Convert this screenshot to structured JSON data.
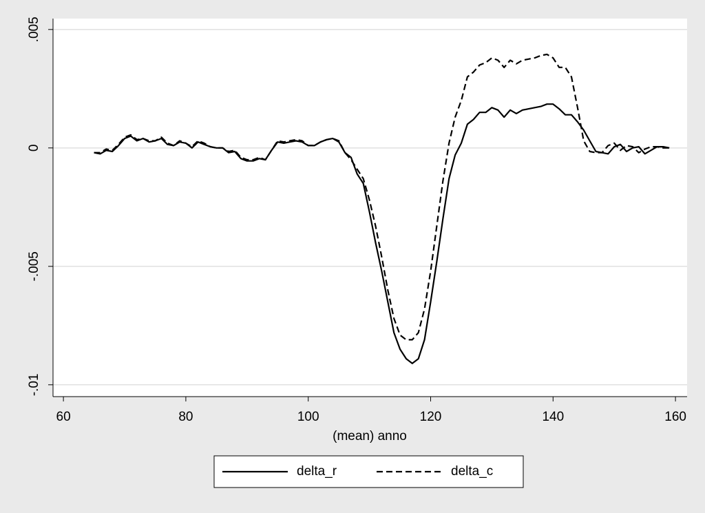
{
  "chart_data": {
    "type": "line",
    "xlabel": "(mean) anno",
    "x": [
      65,
      66,
      67,
      68,
      69,
      70,
      71,
      72,
      73,
      74,
      75,
      76,
      77,
      78,
      79,
      80,
      81,
      82,
      83,
      84,
      85,
      86,
      87,
      88,
      89,
      90,
      91,
      92,
      93,
      94,
      95,
      96,
      97,
      98,
      99,
      100,
      101,
      102,
      103,
      104,
      105,
      106,
      107,
      108,
      109,
      110,
      111,
      112,
      113,
      114,
      115,
      116,
      117,
      118,
      119,
      120,
      121,
      122,
      123,
      124,
      125,
      126,
      127,
      128,
      129,
      130,
      131,
      132,
      133,
      134,
      135,
      136,
      137,
      138,
      139,
      140,
      141,
      142,
      143,
      144,
      145,
      146,
      147,
      148,
      149,
      150,
      151,
      152,
      153,
      154,
      155,
      156,
      157,
      158,
      159
    ],
    "series": [
      {
        "name": "delta_r",
        "color": "#000000",
        "dash": "solid",
        "values": [
          -0.0002,
          -0.00025,
          -0.0001,
          -0.00015,
          0.0001,
          0.0004,
          0.0005,
          0.0003,
          0.0004,
          0.00025,
          0.0003,
          0.0004,
          0.00015,
          0.0001,
          0.00025,
          0.0002,
          0,
          0.00025,
          0.00015,
          5e-05,
          0,
          0,
          -0.0002,
          -0.00015,
          -0.00045,
          -0.00055,
          -0.00055,
          -0.00045,
          -0.0005,
          -0.0001,
          0.00025,
          0.0002,
          0.00025,
          0.0003,
          0.00025,
          0.0001,
          0.0001,
          0.00025,
          0.00035,
          0.0004,
          0.00025,
          -0.0002,
          -0.0004,
          -0.0011,
          -0.0015,
          -0.0027,
          -0.004,
          -0.0052,
          -0.0065,
          -0.0078,
          -0.0085,
          -0.0089,
          -0.0091,
          -0.0089,
          -0.0081,
          -0.0065,
          -0.0048,
          -0.003,
          -0.0013,
          -0.0003,
          0.0002,
          0.001,
          0.0012,
          0.0015,
          0.0015,
          0.0017,
          0.0016,
          0.0013,
          0.0016,
          0.00145,
          0.0016,
          0.00165,
          0.0017,
          0.00175,
          0.00185,
          0.00185,
          0.00165,
          0.0014,
          0.0014,
          0.0011,
          0.00075,
          0.0003,
          -0.00015,
          -0.0002,
          -0.00025,
          5e-05,
          0.00015,
          -0.00015,
          0,
          5e-05,
          -0.00025,
          -0.0001,
          5e-05,
          5e-05,
          0
        ]
      },
      {
        "name": "delta_c",
        "color": "#000000",
        "dash": "dashed",
        "values": [
          -0.0002,
          -0.0002,
          -5e-05,
          -0.0001,
          0.00015,
          0.00045,
          0.00055,
          0.00035,
          0.0004,
          0.0003,
          0.0003,
          0.00045,
          0.0002,
          0.0001,
          0.0003,
          0.0002,
          5e-05,
          0.0003,
          0.0002,
          5e-05,
          0,
          0,
          -0.00015,
          -0.0001,
          -0.0004,
          -0.0005,
          -0.0005,
          -0.0004,
          -0.0005,
          -0.0001,
          0.0003,
          0.00025,
          0.0003,
          0.00035,
          0.0003,
          0.0001,
          0.0001,
          0.00025,
          0.00035,
          0.0004,
          0.0003,
          -0.0002,
          -0.0005,
          -0.0009,
          -0.0013,
          -0.0022,
          -0.0033,
          -0.0046,
          -0.006,
          -0.0072,
          -0.0079,
          -0.0081,
          -0.0081,
          -0.0078,
          -0.0068,
          -0.0052,
          -0.0033,
          -0.0014,
          0.0002,
          0.0013,
          0.002,
          0.003,
          0.0032,
          0.0035,
          0.0036,
          0.0038,
          0.0037,
          0.0034,
          0.0037,
          0.00355,
          0.0037,
          0.00375,
          0.0038,
          0.0039,
          0.00395,
          0.0038,
          0.0034,
          0.0034,
          0.003,
          0.0017,
          0.0003,
          -0.00015,
          -0.0002,
          -0.0002,
          0.0001,
          0.0002,
          -0.0001,
          0.0001,
          5e-05,
          -0.0002,
          -5e-05,
          5e-05,
          5e-05,
          0,
          0
        ]
      }
    ],
    "xlim": [
      58.3,
      161.9
    ],
    "xticks": [
      60,
      80,
      100,
      120,
      140,
      160
    ],
    "ylim": [
      -0.0105,
      0.00546
    ],
    "yticks": [
      {
        "value": -0.01,
        "label": "-.01"
      },
      {
        "value": -0.005,
        "label": "-.005"
      },
      {
        "value": 0,
        "label": "0"
      },
      {
        "value": 0.005,
        "label": ".005"
      }
    ],
    "grid": true,
    "legend": "bottom"
  }
}
